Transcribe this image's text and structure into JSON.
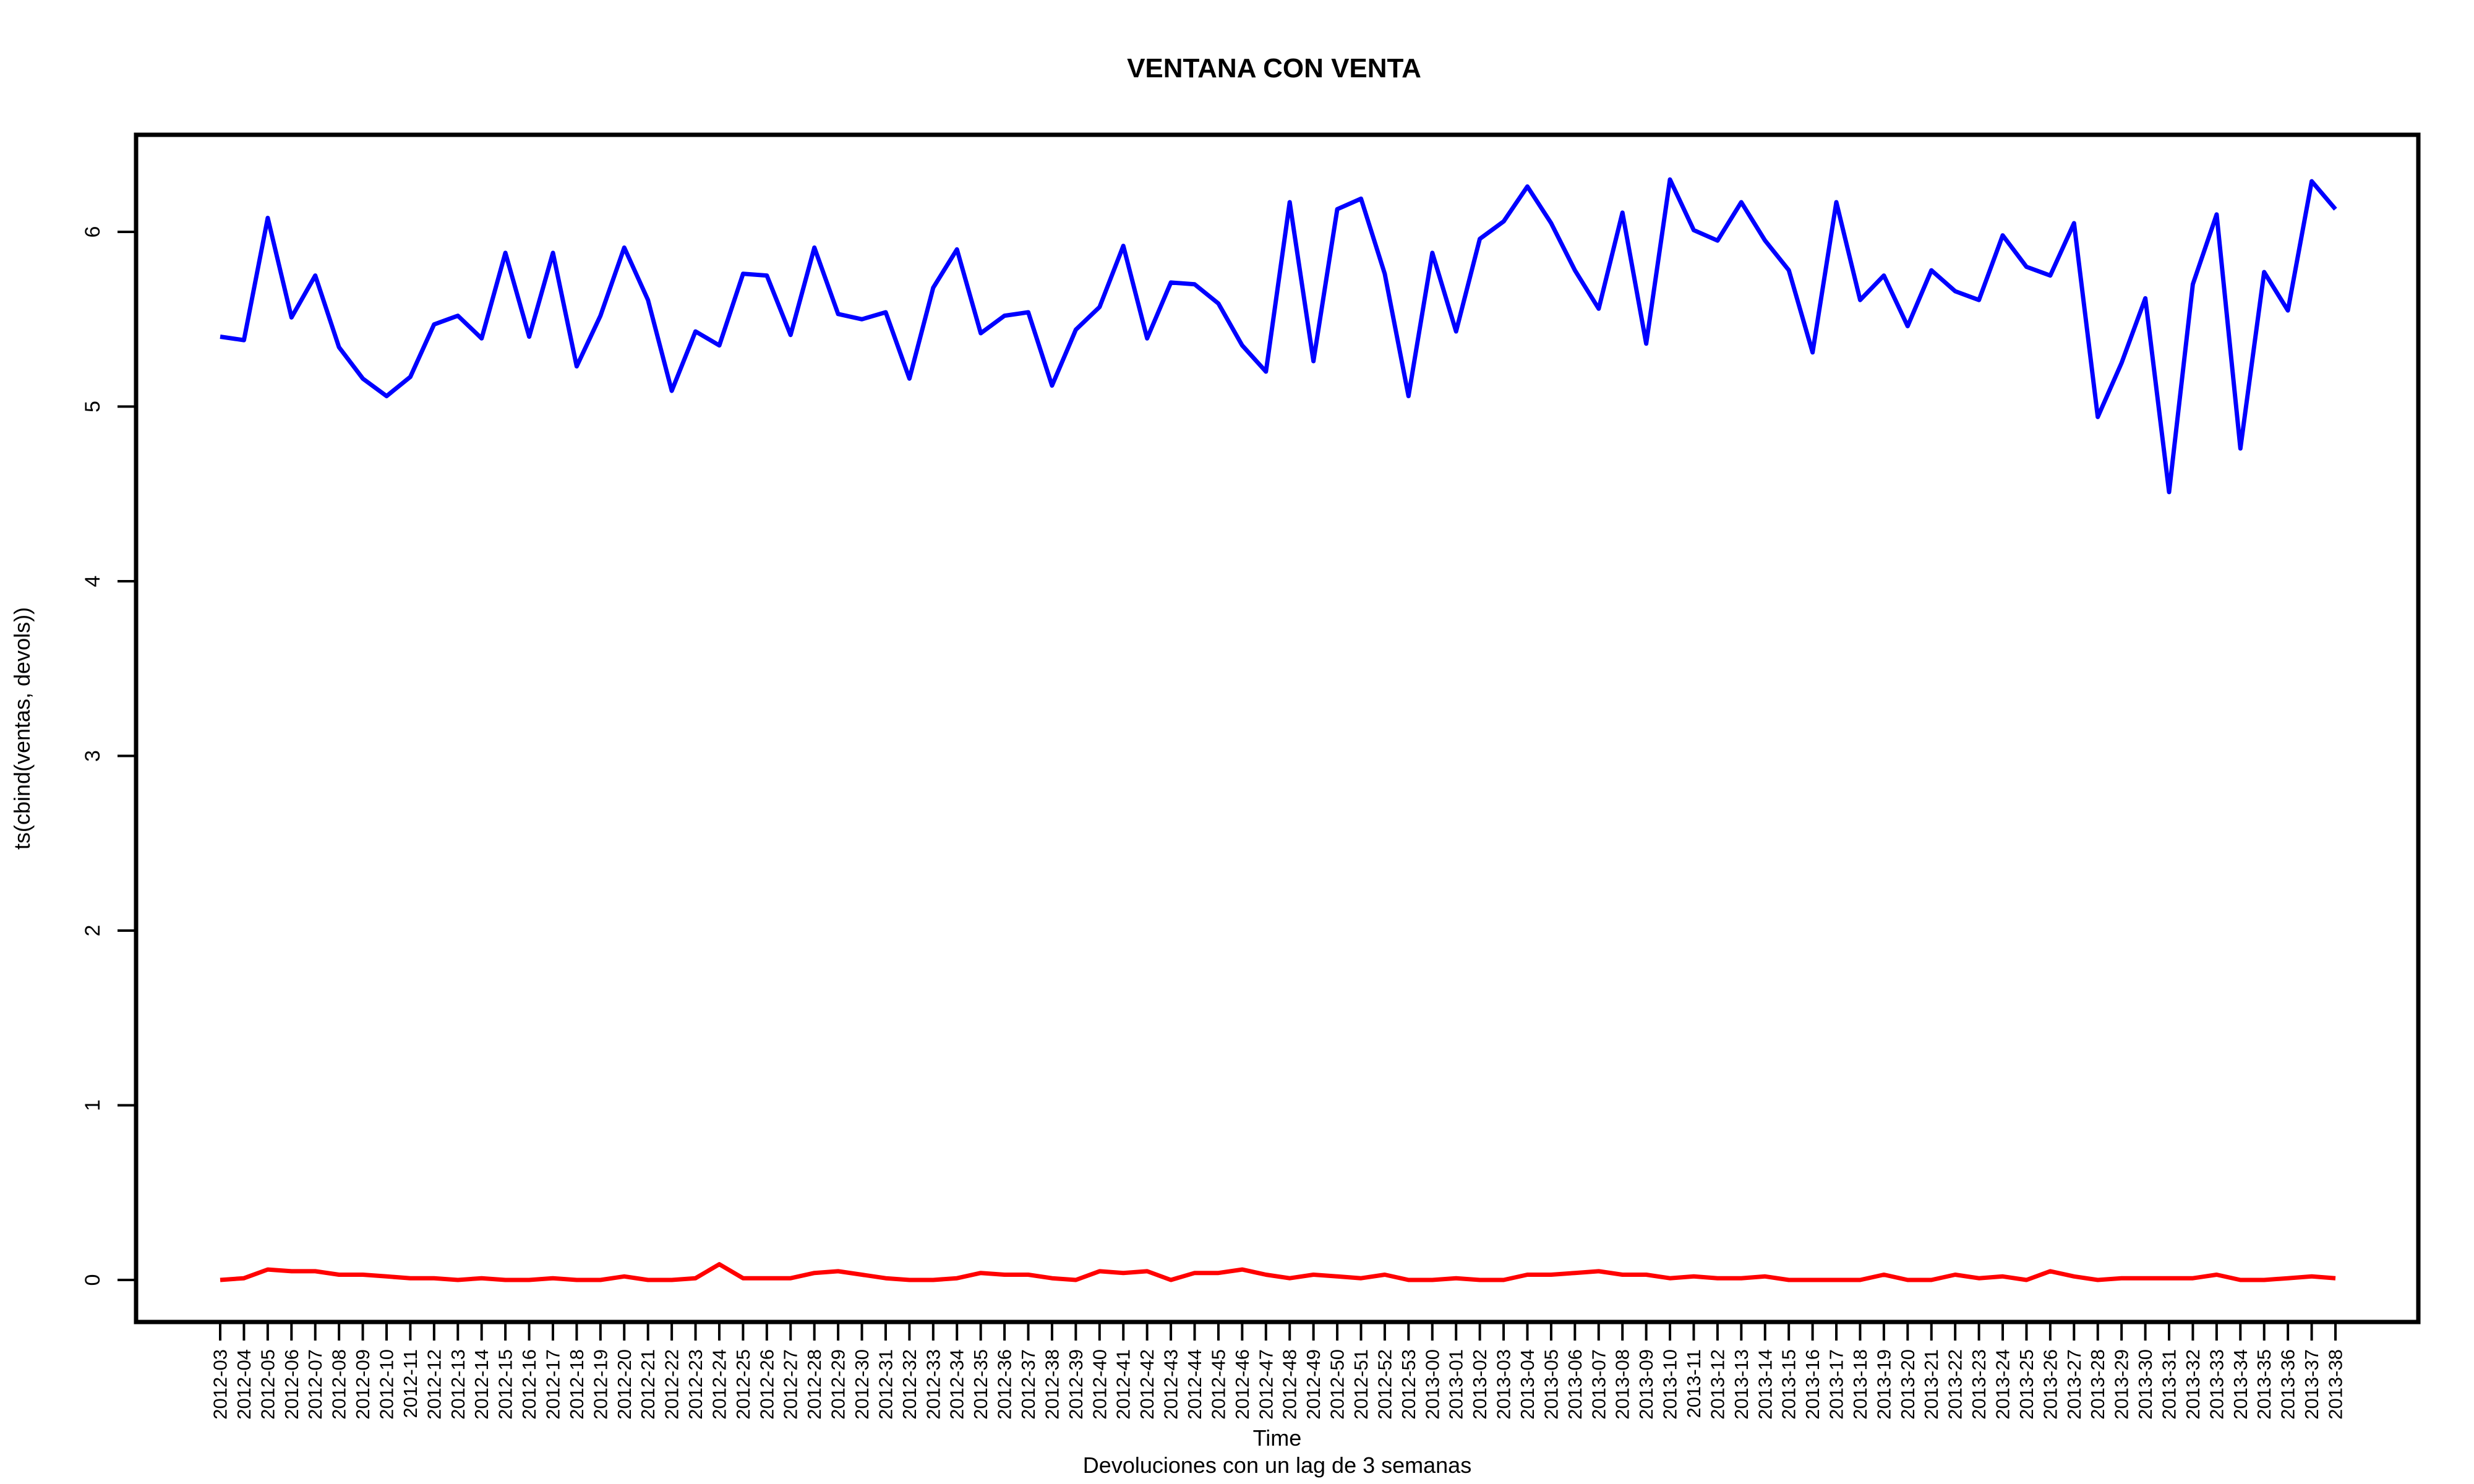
{
  "chart_data": {
    "type": "line",
    "title": "VENTANA CON VENTA",
    "xlabel": "Time",
    "ylabel": "ts(cbind(ventas, devols))",
    "subtitle": "Devoluciones con un lag de 3 semanas",
    "ylim": [
      0,
      6.4
    ],
    "yticks": [
      0,
      1,
      2,
      3,
      4,
      5,
      6
    ],
    "grid": false,
    "categories": [
      "2012-03",
      "2012-04",
      "2012-05",
      "2012-06",
      "2012-07",
      "2012-08",
      "2012-09",
      "2012-10",
      "2012-11",
      "2012-12",
      "2012-13",
      "2012-14",
      "2012-15",
      "2012-16",
      "2012-17",
      "2012-18",
      "2012-19",
      "2012-20",
      "2012-21",
      "2012-22",
      "2012-23",
      "2012-24",
      "2012-25",
      "2012-26",
      "2012-27",
      "2012-28",
      "2012-29",
      "2012-30",
      "2012-31",
      "2012-32",
      "2012-33",
      "2012-34",
      "2012-35",
      "2012-36",
      "2012-37",
      "2012-38",
      "2012-39",
      "2012-40",
      "2012-41",
      "2012-42",
      "2012-43",
      "2012-44",
      "2012-45",
      "2012-46",
      "2012-47",
      "2012-48",
      "2012-49",
      "2012-50",
      "2012-51",
      "2012-52",
      "2012-53",
      "2013-00",
      "2013-01",
      "2013-02",
      "2013-03",
      "2013-04",
      "2013-05",
      "2013-06",
      "2013-07",
      "2013-08",
      "2013-09",
      "2013-10",
      "2013-11",
      "2013-12",
      "2013-13",
      "2013-14",
      "2013-15",
      "2013-16",
      "2013-17",
      "2013-18",
      "2013-19",
      "2013-20",
      "2013-21",
      "2013-22",
      "2013-23",
      "2013-24",
      "2013-25",
      "2013-26",
      "2013-27",
      "2013-28",
      "2013-29",
      "2013-30",
      "2013-31",
      "2013-32",
      "2013-33",
      "2013-34",
      "2013-35",
      "2013-36",
      "2013-37",
      "2013-38"
    ],
    "series": [
      {
        "color": "#0000ff",
        "values": [
          5.4,
          5.38,
          6.08,
          5.51,
          5.75,
          5.34,
          5.16,
          5.06,
          5.17,
          5.47,
          5.52,
          5.39,
          5.88,
          5.4,
          5.88,
          5.23,
          5.52,
          5.91,
          5.61,
          5.09,
          5.43,
          5.35,
          5.76,
          5.75,
          5.41,
          5.91,
          5.53,
          5.5,
          5.54,
          5.16,
          5.68,
          5.9,
          5.42,
          5.52,
          5.54,
          5.12,
          5.44,
          5.57,
          5.92,
          5.39,
          5.71,
          5.7,
          5.59,
          5.35,
          5.2,
          6.17,
          5.26,
          6.13,
          6.19,
          5.76,
          5.06,
          5.88,
          5.43,
          5.96,
          6.06,
          6.26,
          6.05,
          5.78,
          5.56,
          6.11,
          5.36,
          6.3,
          6.01,
          5.95,
          6.17,
          5.95,
          5.78,
          5.31,
          6.17,
          5.61,
          5.75,
          5.46,
          5.78,
          5.66,
          5.61,
          5.98,
          5.8,
          5.75,
          6.05,
          4.94,
          5.25,
          5.62,
          4.51,
          5.7,
          6.1,
          4.76,
          5.77,
          5.55,
          6.29,
          6.13
        ]
      },
      {
        "color": "#ff0000",
        "values": [
          0.0,
          0.01,
          0.06,
          0.05,
          0.05,
          0.03,
          0.03,
          0.02,
          0.01,
          0.01,
          0.0,
          0.01,
          0.0,
          0.0,
          0.01,
          0.0,
          0.0,
          0.02,
          0.0,
          0.0,
          0.01,
          0.09,
          0.01,
          0.01,
          0.01,
          0.04,
          0.05,
          0.03,
          0.01,
          0.0,
          0.0,
          0.01,
          0.04,
          0.03,
          0.03,
          0.01,
          0.0,
          0.05,
          0.04,
          0.05,
          0.0,
          0.04,
          0.04,
          0.06,
          0.03,
          0.01,
          0.03,
          0.02,
          0.01,
          0.03,
          0.0,
          0.0,
          0.01,
          0.0,
          0.0,
          0.03,
          0.03,
          0.04,
          0.05,
          0.03,
          0.03,
          0.01,
          0.02,
          0.01,
          0.01,
          0.02,
          0.0,
          0.0,
          0.0,
          0.0,
          0.03,
          0.0,
          0.0,
          0.03,
          0.01,
          0.02,
          0.0,
          0.05,
          0.02,
          0.0,
          0.01,
          0.01,
          0.01,
          0.01,
          0.03,
          0.0,
          0.0,
          0.01,
          0.02,
          0.01
        ]
      }
    ]
  }
}
